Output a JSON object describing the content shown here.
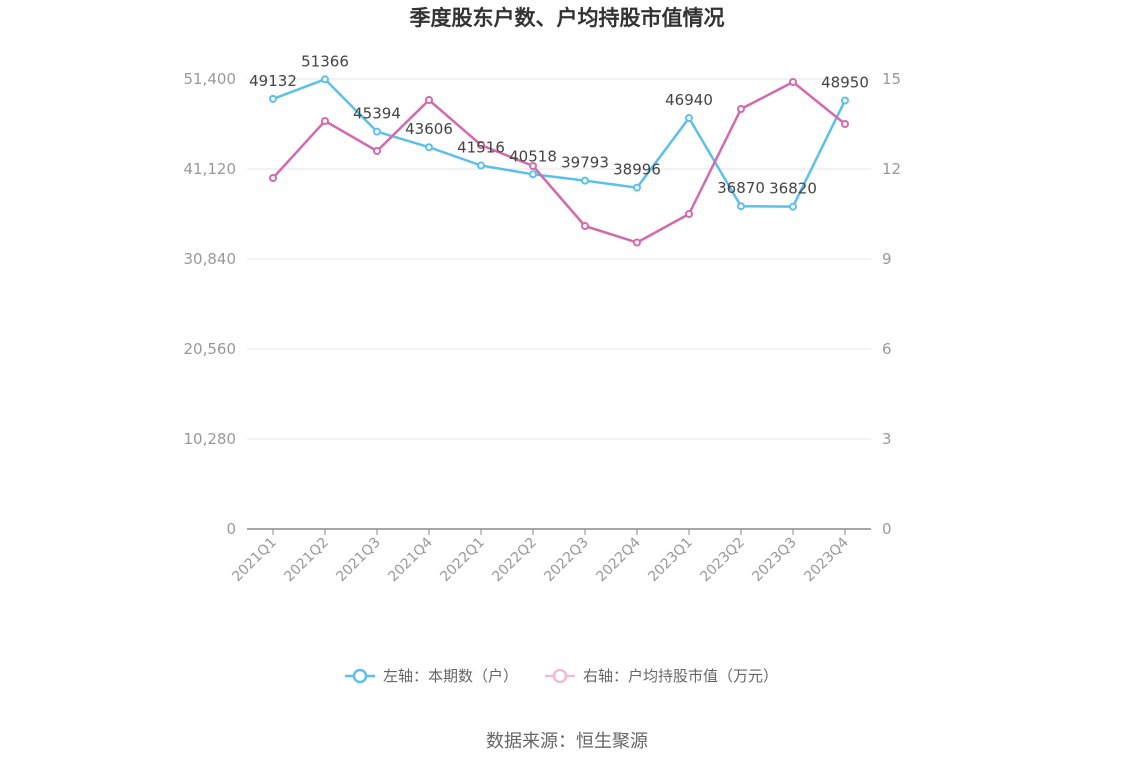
{
  "chart_data": {
    "type": "line",
    "title": "季度股东户数、户均持股市值情况",
    "categories": [
      "2021Q1",
      "2021Q2",
      "2021Q3",
      "2021Q4",
      "2022Q1",
      "2022Q2",
      "2022Q3",
      "2022Q4",
      "2023Q1",
      "2023Q2",
      "2023Q3",
      "2023Q4"
    ],
    "left_axis": {
      "ylim": [
        0,
        51400
      ],
      "ticks": [
        "0",
        "10,280",
        "20,560",
        "30,840",
        "41,120",
        "51,400"
      ]
    },
    "right_axis": {
      "ylim": [
        0,
        15
      ],
      "ticks": [
        "0",
        "3",
        "6",
        "9",
        "12",
        "15"
      ]
    },
    "series": [
      {
        "name": "左轴：本期数（户）",
        "axis": "left",
        "color": "#5bc0eb",
        "values": [
          49132,
          51366,
          45394,
          43606,
          41516,
          40518,
          39793,
          38996,
          46940,
          36870,
          36820,
          48950
        ],
        "labels": [
          "49132",
          "51366",
          "45394",
          "43606",
          "41516",
          "40518",
          "39793",
          "38996",
          "46940",
          "36870",
          "36820",
          "48950"
        ]
      },
      {
        "name": "右轴：户均持股市值（万元）",
        "axis": "right",
        "color": "#d46aae",
        "values": [
          11.7,
          13.6,
          12.6,
          14.3,
          12.8,
          12.1,
          10.1,
          9.55,
          10.5,
          14.0,
          14.9,
          13.5
        ]
      }
    ],
    "grid": true,
    "legend_position": "bottom"
  },
  "source_text": "数据来源：恒生聚源"
}
